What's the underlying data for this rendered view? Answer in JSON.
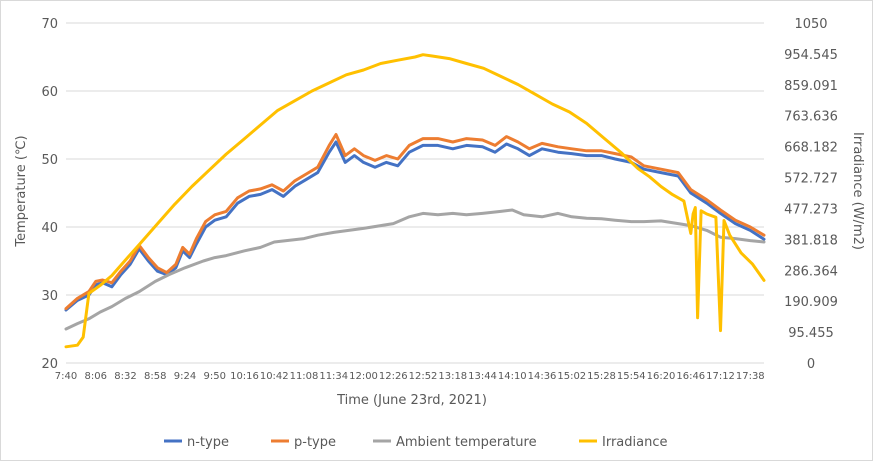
{
  "chart_data": {
    "type": "line",
    "title": "",
    "xlabel": "Time (June 23rd, 2021)",
    "ylabel": "Temperature (℃)",
    "y2label": "Irradiance (W/m2)",
    "ylim": [
      20,
      70
    ],
    "y_ticks": [
      "20",
      "30",
      "40",
      "50",
      "60",
      "70"
    ],
    "y2lim": [
      0,
      1050
    ],
    "y2_ticks": [
      "0",
      "95.455",
      "190.909",
      "286.364",
      "381.818",
      "477.273",
      "572.727",
      "668.182",
      "763.636",
      "859.091",
      "954.545",
      "1050"
    ],
    "xlim": [
      "7:40",
      "17:50"
    ],
    "x_ticks": [
      "7:40",
      "8:06",
      "8:32",
      "8:58",
      "9:24",
      "9:50",
      "10:16",
      "10:42",
      "11:08",
      "11:34",
      "12:00",
      "12:26",
      "12:52",
      "13:18",
      "13:44",
      "14:10",
      "14:36",
      "15:02",
      "15:28",
      "15:54",
      "16:20",
      "16:46",
      "17:12",
      "17:38"
    ],
    "grid": true,
    "legend_position": "bottom",
    "series": [
      {
        "name": "n-type",
        "color": "#4472C4",
        "axis": "left",
        "points": [
          [
            "7:40",
            27.8
          ],
          [
            "7:50",
            29.2
          ],
          [
            "8:00",
            30.0
          ],
          [
            "8:06",
            31.5
          ],
          [
            "8:12",
            31.8
          ],
          [
            "8:20",
            31.2
          ],
          [
            "8:28",
            33.0
          ],
          [
            "8:36",
            34.5
          ],
          [
            "8:44",
            36.8
          ],
          [
            "8:52",
            35.0
          ],
          [
            "9:00",
            33.5
          ],
          [
            "9:08",
            33.0
          ],
          [
            "9:16",
            34.0
          ],
          [
            "9:22",
            36.5
          ],
          [
            "9:28",
            35.5
          ],
          [
            "9:34",
            37.5
          ],
          [
            "9:42",
            40.0
          ],
          [
            "9:50",
            41.0
          ],
          [
            "10:00",
            41.5
          ],
          [
            "10:10",
            43.5
          ],
          [
            "10:20",
            44.5
          ],
          [
            "10:30",
            44.8
          ],
          [
            "10:40",
            45.5
          ],
          [
            "10:50",
            44.5
          ],
          [
            "11:00",
            46.0
          ],
          [
            "11:10",
            47.0
          ],
          [
            "11:20",
            48.0
          ],
          [
            "11:30",
            51.0
          ],
          [
            "11:36",
            52.5
          ],
          [
            "11:44",
            49.5
          ],
          [
            "11:52",
            50.5
          ],
          [
            "12:00",
            49.5
          ],
          [
            "12:10",
            48.8
          ],
          [
            "12:20",
            49.5
          ],
          [
            "12:30",
            49.0
          ],
          [
            "12:40",
            51.0
          ],
          [
            "12:52",
            52.0
          ],
          [
            "13:05",
            52.0
          ],
          [
            "13:18",
            51.5
          ],
          [
            "13:30",
            52.0
          ],
          [
            "13:44",
            51.8
          ],
          [
            "13:55",
            51.0
          ],
          [
            "14:05",
            52.2
          ],
          [
            "14:15",
            51.5
          ],
          [
            "14:25",
            50.5
          ],
          [
            "14:36",
            51.5
          ],
          [
            "14:50",
            51.0
          ],
          [
            "15:02",
            50.8
          ],
          [
            "15:15",
            50.5
          ],
          [
            "15:28",
            50.5
          ],
          [
            "15:40",
            50.0
          ],
          [
            "15:54",
            49.5
          ],
          [
            "16:05",
            48.5
          ],
          [
            "16:20",
            48.0
          ],
          [
            "16:35",
            47.5
          ],
          [
            "16:46",
            45.0
          ],
          [
            "17:00",
            43.5
          ],
          [
            "17:12",
            42.0
          ],
          [
            "17:25",
            40.5
          ],
          [
            "17:38",
            39.5
          ],
          [
            "17:50",
            38.2
          ]
        ]
      },
      {
        "name": "p-type",
        "color": "#ED7D31",
        "axis": "left",
        "points": [
          [
            "7:40",
            28.0
          ],
          [
            "7:50",
            29.5
          ],
          [
            "8:00",
            30.5
          ],
          [
            "8:06",
            32.0
          ],
          [
            "8:12",
            32.2
          ],
          [
            "8:20",
            31.8
          ],
          [
            "8:28",
            33.5
          ],
          [
            "8:36",
            35.0
          ],
          [
            "8:44",
            37.3
          ],
          [
            "8:52",
            35.5
          ],
          [
            "9:00",
            34.0
          ],
          [
            "9:08",
            33.3
          ],
          [
            "9:16",
            34.5
          ],
          [
            "9:22",
            37.0
          ],
          [
            "9:28",
            36.0
          ],
          [
            "9:34",
            38.3
          ],
          [
            "9:42",
            40.8
          ],
          [
            "9:50",
            41.8
          ],
          [
            "10:00",
            42.3
          ],
          [
            "10:10",
            44.3
          ],
          [
            "10:20",
            45.3
          ],
          [
            "10:30",
            45.6
          ],
          [
            "10:40",
            46.2
          ],
          [
            "10:50",
            45.3
          ],
          [
            "11:00",
            46.8
          ],
          [
            "11:10",
            47.8
          ],
          [
            "11:20",
            48.8
          ],
          [
            "11:30",
            52.0
          ],
          [
            "11:36",
            53.6
          ],
          [
            "11:44",
            50.5
          ],
          [
            "11:52",
            51.5
          ],
          [
            "12:00",
            50.5
          ],
          [
            "12:10",
            49.8
          ],
          [
            "12:20",
            50.5
          ],
          [
            "12:30",
            50.0
          ],
          [
            "12:40",
            52.0
          ],
          [
            "12:52",
            53.0
          ],
          [
            "13:05",
            53.0
          ],
          [
            "13:18",
            52.5
          ],
          [
            "13:30",
            53.0
          ],
          [
            "13:44",
            52.8
          ],
          [
            "13:55",
            52.0
          ],
          [
            "14:05",
            53.3
          ],
          [
            "14:15",
            52.5
          ],
          [
            "14:25",
            51.5
          ],
          [
            "14:36",
            52.3
          ],
          [
            "14:50",
            51.8
          ],
          [
            "15:02",
            51.5
          ],
          [
            "15:15",
            51.2
          ],
          [
            "15:28",
            51.2
          ],
          [
            "15:40",
            50.8
          ],
          [
            "15:54",
            50.3
          ],
          [
            "16:05",
            49.0
          ],
          [
            "16:20",
            48.5
          ],
          [
            "16:35",
            48.0
          ],
          [
            "16:46",
            45.5
          ],
          [
            "17:00",
            44.0
          ],
          [
            "17:12",
            42.5
          ],
          [
            "17:25",
            41.0
          ],
          [
            "17:38",
            40.0
          ],
          [
            "17:50",
            38.8
          ]
        ]
      },
      {
        "name": "Ambient temperature",
        "color": "#A5A5A5",
        "axis": "left",
        "points": [
          [
            "7:40",
            25.0
          ],
          [
            "7:50",
            25.8
          ],
          [
            "8:00",
            26.5
          ],
          [
            "8:10",
            27.5
          ],
          [
            "8:20",
            28.3
          ],
          [
            "8:32",
            29.5
          ],
          [
            "8:44",
            30.5
          ],
          [
            "8:58",
            32.0
          ],
          [
            "9:10",
            33.0
          ],
          [
            "9:24",
            34.0
          ],
          [
            "9:40",
            35.0
          ],
          [
            "9:50",
            35.5
          ],
          [
            "10:00",
            35.8
          ],
          [
            "10:16",
            36.5
          ],
          [
            "10:30",
            37.0
          ],
          [
            "10:42",
            37.8
          ],
          [
            "11:08",
            38.3
          ],
          [
            "11:20",
            38.8
          ],
          [
            "11:34",
            39.2
          ],
          [
            "12:00",
            39.8
          ],
          [
            "12:26",
            40.5
          ],
          [
            "12:40",
            41.5
          ],
          [
            "12:52",
            42.0
          ],
          [
            "13:05",
            41.8
          ],
          [
            "13:18",
            42.0
          ],
          [
            "13:30",
            41.8
          ],
          [
            "13:44",
            42.0
          ],
          [
            "14:00",
            42.3
          ],
          [
            "14:10",
            42.5
          ],
          [
            "14:20",
            41.8
          ],
          [
            "14:36",
            41.5
          ],
          [
            "14:50",
            42.0
          ],
          [
            "15:02",
            41.5
          ],
          [
            "15:15",
            41.3
          ],
          [
            "15:28",
            41.2
          ],
          [
            "15:40",
            41.0
          ],
          [
            "15:54",
            40.8
          ],
          [
            "16:05",
            40.8
          ],
          [
            "16:20",
            40.9
          ],
          [
            "16:35",
            40.5
          ],
          [
            "16:46",
            40.2
          ],
          [
            "17:00",
            39.5
          ],
          [
            "17:12",
            38.5
          ],
          [
            "17:25",
            38.3
          ],
          [
            "17:38",
            38.0
          ],
          [
            "17:50",
            37.8
          ]
        ]
      },
      {
        "name": "Irradiance",
        "color": "#FFC000",
        "axis": "right",
        "points": [
          [
            "7:40",
            50
          ],
          [
            "7:50",
            55
          ],
          [
            "7:55",
            80
          ],
          [
            "8:00",
            215
          ],
          [
            "8:10",
            240
          ],
          [
            "8:20",
            270
          ],
          [
            "8:30",
            310
          ],
          [
            "8:45",
            370
          ],
          [
            "9:00",
            430
          ],
          [
            "9:15",
            490
          ],
          [
            "9:30",
            545
          ],
          [
            "9:45",
            595
          ],
          [
            "10:00",
            645
          ],
          [
            "10:15",
            690
          ],
          [
            "10:30",
            735
          ],
          [
            "10:45",
            780
          ],
          [
            "11:00",
            810
          ],
          [
            "11:15",
            840
          ],
          [
            "11:30",
            865
          ],
          [
            "11:45",
            890
          ],
          [
            "12:00",
            905
          ],
          [
            "12:15",
            925
          ],
          [
            "12:30",
            935
          ],
          [
            "12:45",
            945
          ],
          [
            "12:52",
            952
          ],
          [
            "13:00",
            948
          ],
          [
            "13:15",
            940
          ],
          [
            "13:30",
            925
          ],
          [
            "13:45",
            910
          ],
          [
            "14:00",
            885
          ],
          [
            "14:15",
            860
          ],
          [
            "14:30",
            830
          ],
          [
            "14:45",
            800
          ],
          [
            "15:00",
            775
          ],
          [
            "15:15",
            740
          ],
          [
            "15:30",
            695
          ],
          [
            "15:45",
            650
          ],
          [
            "16:00",
            600
          ],
          [
            "16:10",
            575
          ],
          [
            "16:20",
            545
          ],
          [
            "16:30",
            520
          ],
          [
            "16:40",
            500
          ],
          [
            "16:46",
            400
          ],
          [
            "16:48",
            460
          ],
          [
            "16:50",
            480
          ],
          [
            "16:52",
            140
          ],
          [
            "16:55",
            470
          ],
          [
            "17:00",
            460
          ],
          [
            "17:08",
            450
          ],
          [
            "17:12",
            100
          ],
          [
            "17:15",
            440
          ],
          [
            "17:20",
            395
          ],
          [
            "17:30",
            340
          ],
          [
            "17:40",
            305
          ],
          [
            "17:50",
            255
          ]
        ]
      }
    ]
  }
}
